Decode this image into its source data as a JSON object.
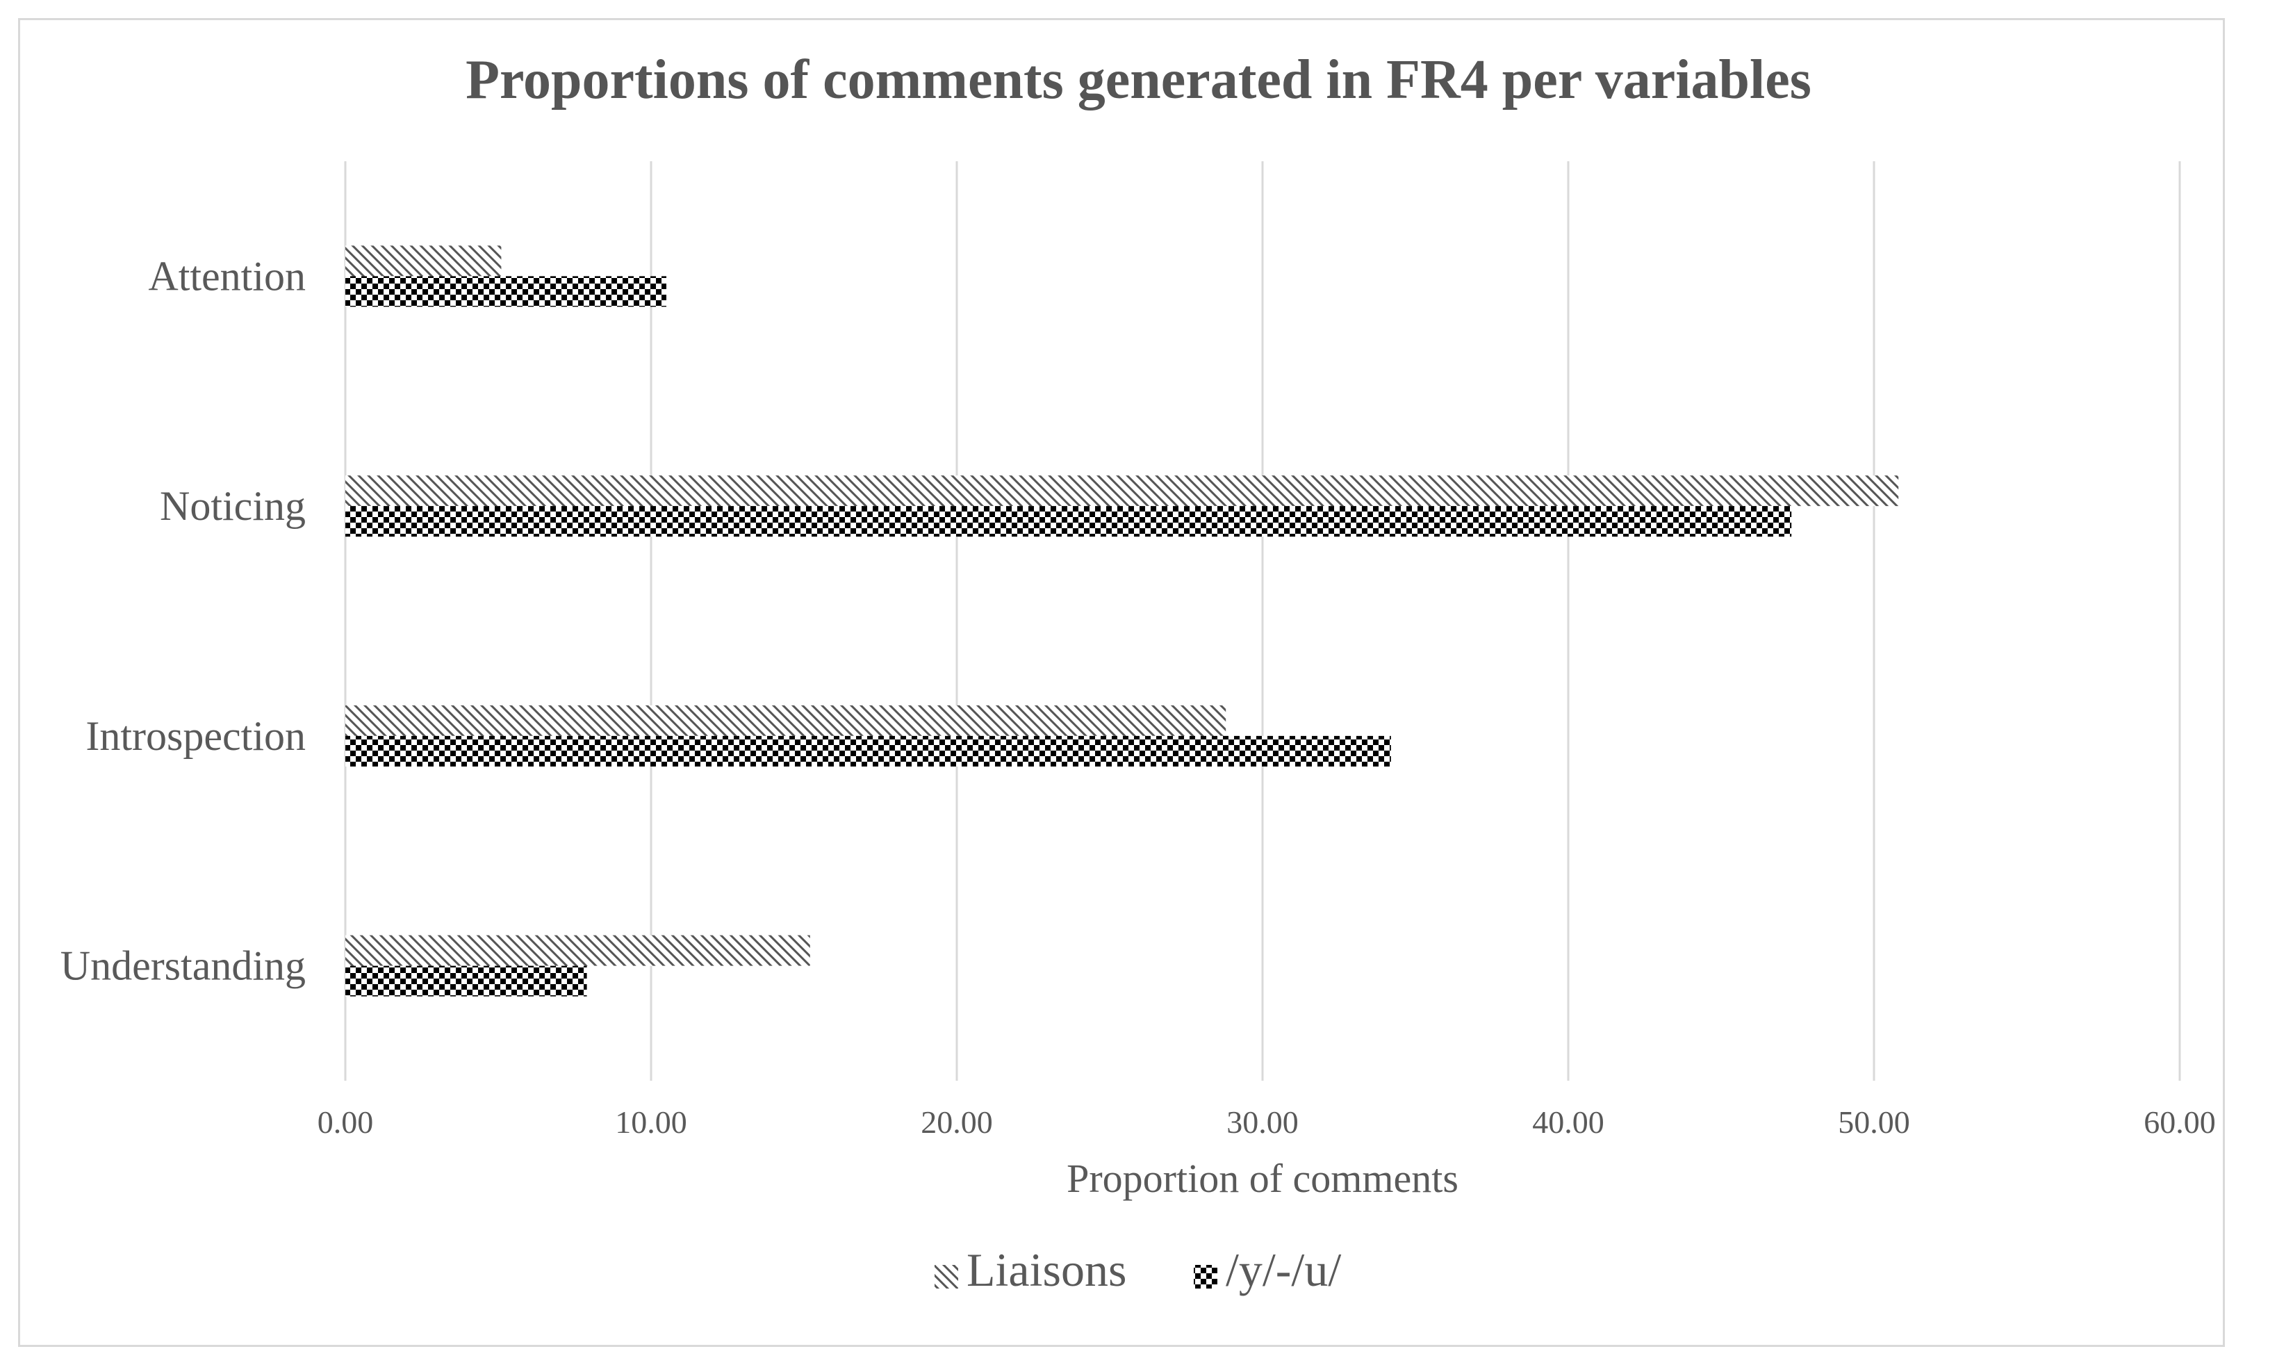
{
  "chart_data": {
    "type": "bar",
    "orientation": "horizontal",
    "title": "Proportions of comments generated in FR4 per variables",
    "xlabel": "Proportion of comments",
    "ylabel": "",
    "xlim": [
      0,
      60
    ],
    "xticks": [
      "0.00",
      "10.00",
      "20.00",
      "30.00",
      "40.00",
      "50.00",
      "60.00"
    ],
    "categories": [
      "Attention",
      "Noticing",
      "Introspection",
      "Understanding"
    ],
    "series": [
      {
        "name": "Liaisons",
        "values": [
          5.1,
          50.8,
          28.8,
          15.2
        ],
        "pattern": "diagonal-hatch"
      },
      {
        "name": "/y/-/u/",
        "values": [
          10.5,
          47.3,
          34.2,
          7.9
        ],
        "pattern": "checker"
      }
    ],
    "grid": true,
    "legend_position": "bottom",
    "colors": {
      "gridline": "#d9d9d9",
      "text": "#595959",
      "mark": "#000000"
    }
  }
}
